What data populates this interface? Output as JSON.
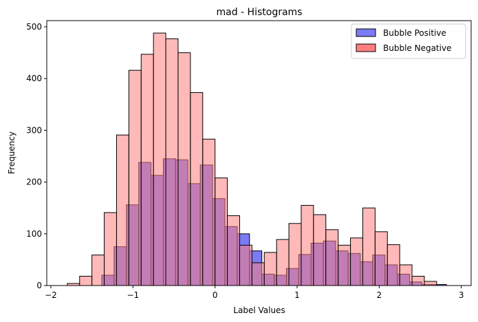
{
  "chart_data": {
    "type": "bar",
    "title": "mad - Histograms",
    "xlabel": "Label Values",
    "ylabel": "Frequency",
    "xlim": [
      -2.05,
      3.12
    ],
    "ylim": [
      0,
      512
    ],
    "xticks": [
      -2,
      -1,
      0,
      1,
      2,
      3
    ],
    "yticks": [
      0,
      100,
      200,
      300,
      400,
      500
    ],
    "legend_position": "top-right",
    "bin_width": 0.15,
    "series": [
      {
        "name": "Bubble Positive",
        "color": "#7b7bf5",
        "bins": [
          {
            "x0": -1.38,
            "value": 20
          },
          {
            "x0": -1.23,
            "value": 75
          },
          {
            "x0": -1.08,
            "value": 156
          },
          {
            "x0": -0.93,
            "value": 238
          },
          {
            "x0": -0.78,
            "value": 213
          },
          {
            "x0": -0.63,
            "value": 245
          },
          {
            "x0": -0.48,
            "value": 243
          },
          {
            "x0": -0.33,
            "value": 197
          },
          {
            "x0": -0.18,
            "value": 233
          },
          {
            "x0": -0.03,
            "value": 168
          },
          {
            "x0": 0.12,
            "value": 114
          },
          {
            "x0": 0.27,
            "value": 100
          },
          {
            "x0": 0.42,
            "value": 67
          },
          {
            "x0": 0.57,
            "value": 22
          },
          {
            "x0": 0.72,
            "value": 20
          },
          {
            "x0": 0.87,
            "value": 33
          },
          {
            "x0": 1.02,
            "value": 60
          },
          {
            "x0": 1.17,
            "value": 82
          },
          {
            "x0": 1.32,
            "value": 86
          },
          {
            "x0": 1.47,
            "value": 67
          },
          {
            "x0": 1.62,
            "value": 62
          },
          {
            "x0": 1.77,
            "value": 46
          },
          {
            "x0": 1.92,
            "value": 59
          },
          {
            "x0": 2.07,
            "value": 40
          },
          {
            "x0": 2.22,
            "value": 22
          },
          {
            "x0": 2.37,
            "value": 7
          },
          {
            "x0": 2.52,
            "value": 2
          },
          {
            "x0": 2.67,
            "value": 2
          }
        ]
      },
      {
        "name": "Bubble Negative",
        "color": "#ff7f7f",
        "bins": [
          {
            "x0": -1.8,
            "value": 4
          },
          {
            "x0": -1.65,
            "value": 18
          },
          {
            "x0": -1.5,
            "value": 59
          },
          {
            "x0": -1.35,
            "value": 141
          },
          {
            "x0": -1.2,
            "value": 291
          },
          {
            "x0": -1.05,
            "value": 416
          },
          {
            "x0": -0.9,
            "value": 447
          },
          {
            "x0": -0.75,
            "value": 488
          },
          {
            "x0": -0.6,
            "value": 477
          },
          {
            "x0": -0.45,
            "value": 450
          },
          {
            "x0": -0.3,
            "value": 373
          },
          {
            "x0": -0.15,
            "value": 283
          },
          {
            "x0": 0.0,
            "value": 208
          },
          {
            "x0": 0.15,
            "value": 135
          },
          {
            "x0": 0.3,
            "value": 78
          },
          {
            "x0": 0.45,
            "value": 44
          },
          {
            "x0": 0.6,
            "value": 64
          },
          {
            "x0": 0.75,
            "value": 89
          },
          {
            "x0": 0.9,
            "value": 120
          },
          {
            "x0": 1.05,
            "value": 155
          },
          {
            "x0": 1.2,
            "value": 137
          },
          {
            "x0": 1.35,
            "value": 108
          },
          {
            "x0": 1.5,
            "value": 78
          },
          {
            "x0": 1.65,
            "value": 92
          },
          {
            "x0": 1.8,
            "value": 150
          },
          {
            "x0": 1.95,
            "value": 104
          },
          {
            "x0": 2.1,
            "value": 79
          },
          {
            "x0": 2.25,
            "value": 40
          },
          {
            "x0": 2.4,
            "value": 18
          },
          {
            "x0": 2.55,
            "value": 8
          }
        ]
      }
    ]
  }
}
